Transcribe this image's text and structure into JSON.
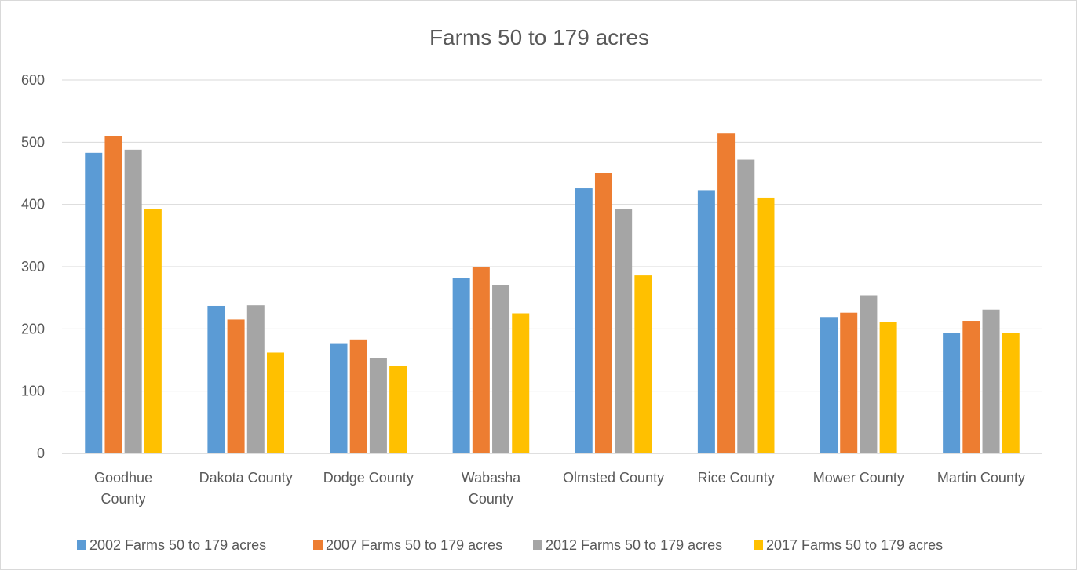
{
  "chart_data": {
    "type": "bar",
    "title": "Farms 50 to 179 acres",
    "xlabel": "",
    "ylabel": "",
    "ylim": [
      0,
      600
    ],
    "yticks": [
      0,
      100,
      200,
      300,
      400,
      500,
      600
    ],
    "grid": true,
    "legend_position": "bottom",
    "categories": [
      [
        "Goodhue",
        "County"
      ],
      [
        "Dakota County"
      ],
      [
        "Dodge County"
      ],
      [
        "Wabasha",
        "County"
      ],
      [
        "Olmsted County"
      ],
      [
        "Rice County"
      ],
      [
        "Mower County"
      ],
      [
        "Martin County"
      ]
    ],
    "series": [
      {
        "name": "2002 Farms 50 to 179 acres",
        "color": "#5b9bd5",
        "values": [
          483,
          237,
          177,
          282,
          426,
          423,
          219,
          194
        ]
      },
      {
        "name": "2007 Farms 50 to 179 acres",
        "color": "#ed7d31",
        "values": [
          510,
          215,
          183,
          300,
          450,
          514,
          226,
          213
        ]
      },
      {
        "name": "2012 Farms 50 to 179 acres",
        "color": "#a5a5a5",
        "values": [
          488,
          238,
          153,
          271,
          392,
          472,
          254,
          231
        ]
      },
      {
        "name": "2017 Farms 50 to 179 acres",
        "color": "#ffc000",
        "values": [
          393,
          162,
          141,
          225,
          286,
          411,
          211,
          193
        ]
      }
    ]
  }
}
